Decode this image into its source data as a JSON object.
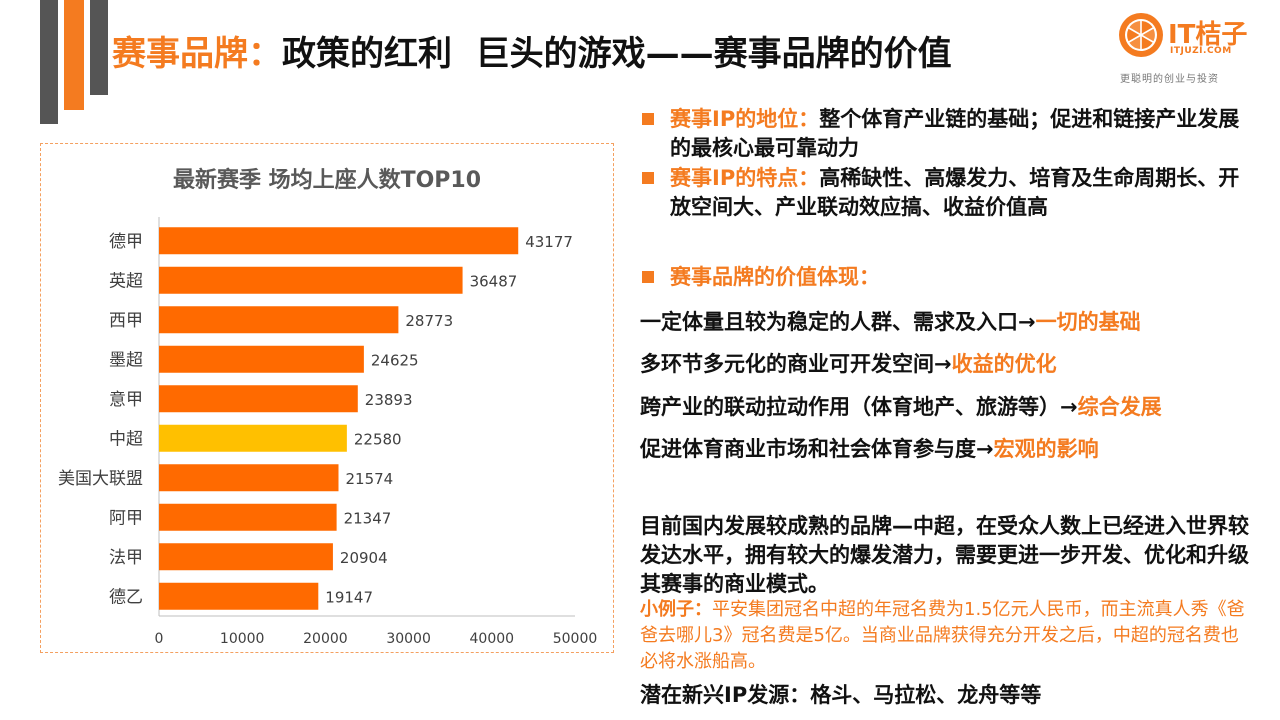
{
  "title": {
    "accent": "赛事品牌：",
    "main": "政策的红利  巨头的游戏——赛事品牌的价值"
  },
  "logo": {
    "text": "IT桔子",
    "domain": "ITJUZI.COM",
    "slogan": "更聪明的创业与投资"
  },
  "bullets": [
    {
      "label": "赛事IP的地位：",
      "text": "整个体育产业链的基础；促进和链接产业发展的最核心最可靠动力"
    },
    {
      "label": "赛事IP的特点：",
      "text": "高稀缺性、高爆发力、培育及生命周期长、开放空间大、产业联动效应搞、收益价值高"
    },
    {
      "label": "赛事品牌的价值体现：",
      "text": ""
    }
  ],
  "value_lines": [
    {
      "text": "一定体量且较为稳定的人群、需求及入口→",
      "highlight": "一切的基础"
    },
    {
      "text": "多环节多元化的商业可开发空间→",
      "highlight": "收益的优化"
    },
    {
      "text": "跨产业的联动拉动作用（体育地产、旅游等）→",
      "highlight": "综合发展"
    },
    {
      "text": "促进体育商业市场和社会体育参与度→",
      "highlight": "宏观的影响"
    }
  ],
  "summary": "目前国内发展较成熟的品牌—中超，在受众人数上已经进入世界较发达水平，拥有较大的爆发潜力，需要更进一步开发、优化和升级其赛事的商业模式。",
  "example": {
    "label": "小例子：",
    "text": "平安集团冠名中超的年冠名费为1.5亿元人民币，而主流真人秀《爸爸去哪儿3》冠名费是5亿。当商业品牌获得充分开发之后，中超的冠名费也必将水涨船高。"
  },
  "potential": "潜在新兴IP发源：格斗、马拉松、龙舟等等",
  "chart_data": {
    "type": "bar",
    "orientation": "horizontal",
    "title": "最新赛季 场均上座人数TOP10",
    "categories": [
      "德甲",
      "英超",
      "西甲",
      "墨超",
      "意甲",
      "中超",
      "美国大联盟",
      "阿甲",
      "法甲",
      "德乙"
    ],
    "values": [
      43177,
      36487,
      28773,
      24625,
      23893,
      22580,
      21574,
      21347,
      20904,
      19147
    ],
    "highlight_category": "中超",
    "xlim": [
      0,
      50000
    ],
    "xticks": [
      0,
      10000,
      20000,
      30000,
      40000,
      50000
    ],
    "xlabel": "",
    "ylabel": "",
    "colors": {
      "bar": "#ff6a00",
      "highlight": "#ffc000"
    }
  }
}
